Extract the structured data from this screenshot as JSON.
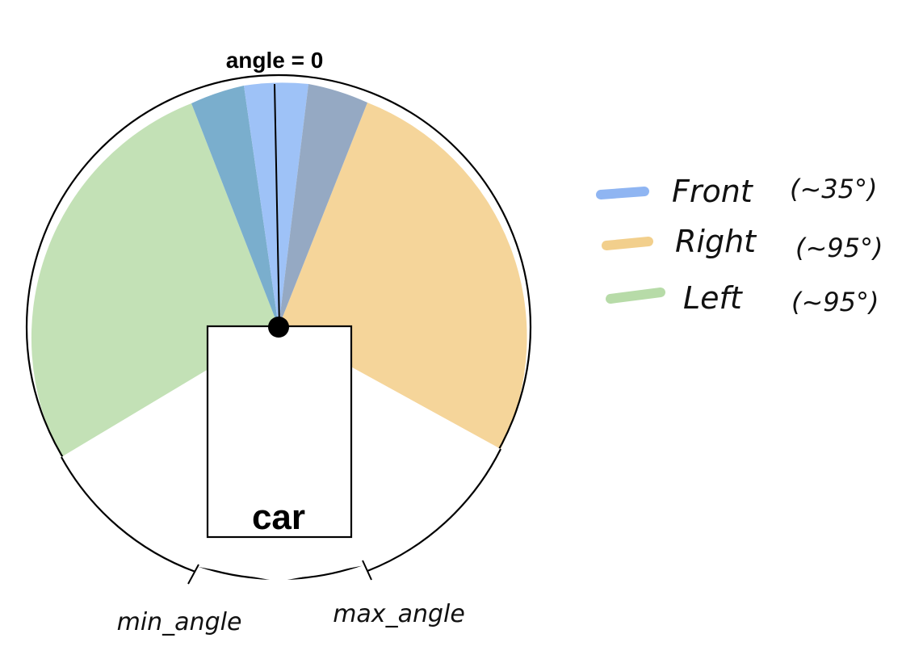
{
  "title_label": "angle = 0",
  "car_label": "car",
  "min_angle_label": "min_angle",
  "max_angle_label": "max_angle",
  "legend": [
    {
      "name": "Front",
      "note": "(~35°)",
      "color": "#8fb5f2"
    },
    {
      "name": "Right",
      "note": "(~95°)",
      "color": "#f2cf8c"
    },
    {
      "name": "Left",
      "note": "(~95°)",
      "color": "#b7dba8"
    }
  ],
  "sectors": {
    "front_color": "#9ec2f7",
    "front_left_overlap_color": "#7aaecd",
    "front_right_overlap_color": "#95a9c3",
    "right_color": "#f5d59a",
    "left_color": "#c3e1b6"
  }
}
